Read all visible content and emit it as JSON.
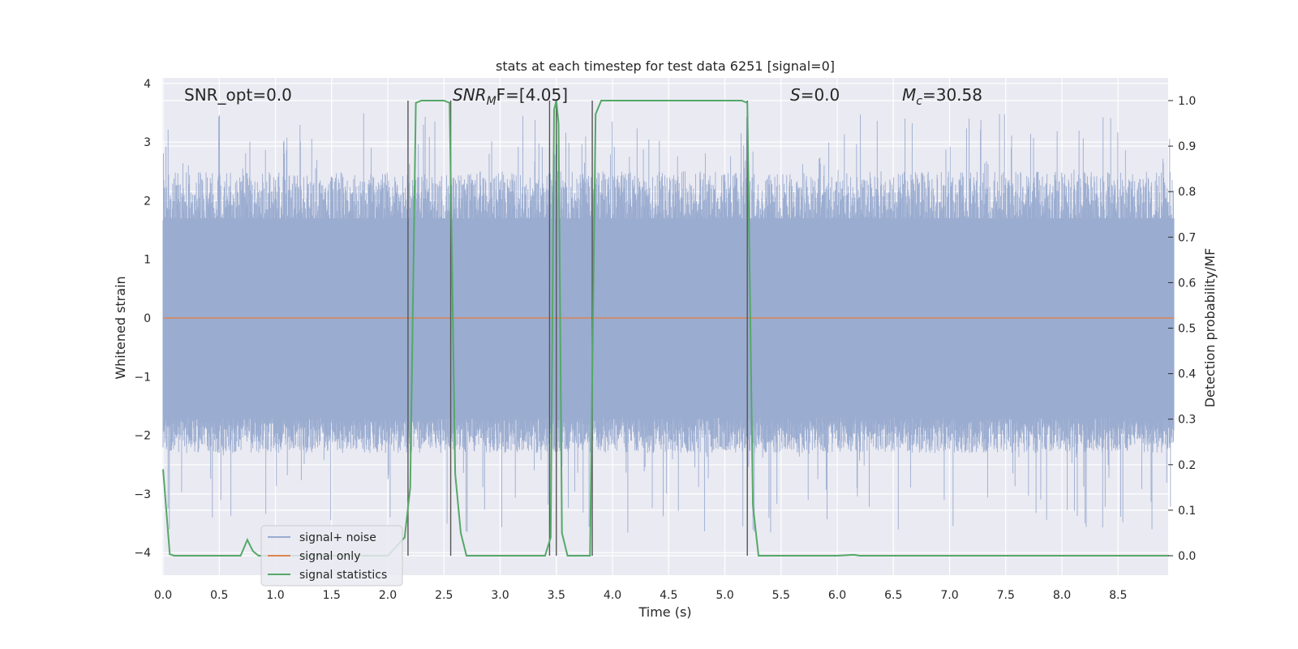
{
  "chart_data": {
    "type": "line",
    "title": "stats at each timestep for test data 6251 [signal=0]",
    "xlabel": "Time (s)",
    "ylabel": "Whitened strain",
    "y2label": "Detection probability/MF",
    "xlim": [
      0.0,
      9.0
    ],
    "ylim": [
      -4.4,
      4.1
    ],
    "y2lim": [
      -0.048,
      1.035
    ],
    "xticks": [
      "0.0",
      "0.5",
      "1.0",
      "1.5",
      "2.0",
      "2.5",
      "3.0",
      "3.5",
      "4.0",
      "4.5",
      "5.0",
      "5.5",
      "6.0",
      "6.5",
      "7.0",
      "7.5",
      "8.0",
      "8.5"
    ],
    "yticks": [
      "4",
      "3",
      "2",
      "1",
      "0",
      "−1",
      "−2",
      "−3",
      "−4"
    ],
    "y2ticks": [
      "1.0",
      "0.9",
      "0.8",
      "0.7",
      "0.6",
      "0.5",
      "0.4",
      "0.3",
      "0.2",
      "0.1",
      "0.0"
    ],
    "grid": true,
    "legend_position": "lower-left",
    "colors": {
      "plot_bg": "#eaeaf2",
      "noise": "#9aacd0",
      "signal_only": "#dd8452",
      "statistics": "#55a868",
      "vlines": "#555555"
    },
    "annotations": {
      "snr_opt": "SNR_opt=0.0",
      "snr_mf_sym": "SNR",
      "snr_mf_sub": "M",
      "snr_mf_rest": "F=[4.05]",
      "s_sym": "S",
      "s_rest": "=0.0",
      "mc_sym": "M",
      "mc_sub": "c",
      "mc_rest": "=30.58"
    },
    "series": [
      {
        "name": "signal+ noise",
        "kind": "noise",
        "envelope_upper": 2.5,
        "envelope_lower": -2.2,
        "spike_max": 3.5,
        "spike_min": -3.7
      },
      {
        "name": "signal only",
        "kind": "constant",
        "value": 0.0
      },
      {
        "name": "signal statistics",
        "kind": "statistic",
        "x": [
          0.0,
          0.06,
          0.1,
          0.15,
          0.25,
          0.35,
          0.45,
          0.55,
          0.65,
          0.69,
          0.75,
          0.8,
          0.85,
          0.9,
          1.0,
          1.5,
          2.0,
          2.15,
          2.2,
          2.25,
          2.3,
          2.4,
          2.5,
          2.55,
          2.6,
          2.65,
          2.7,
          3.0,
          3.4,
          3.45,
          3.48,
          3.5,
          3.52,
          3.55,
          3.6,
          3.65,
          3.7,
          3.8,
          3.82,
          3.85,
          3.9,
          4.0,
          4.5,
          5.0,
          5.15,
          5.2,
          5.25,
          5.3,
          5.35,
          5.5,
          6.0,
          6.15,
          6.2,
          6.3,
          7.0,
          8.0,
          8.95
        ],
        "y": [
          0.19,
          0.003,
          0.0,
          0.0,
          0.0,
          0.0,
          0.0,
          0.0,
          0.0,
          0.0,
          0.035,
          0.01,
          0.0,
          0.0,
          0.0,
          0.0,
          0.0,
          0.04,
          0.15,
          0.995,
          1.0,
          1.0,
          1.0,
          0.995,
          0.18,
          0.05,
          0.0,
          0.0,
          0.0,
          0.04,
          0.98,
          1.0,
          0.95,
          0.05,
          0.0,
          0.0,
          0.0,
          0.0,
          0.4,
          0.97,
          1.0,
          1.0,
          1.0,
          1.0,
          1.0,
          0.995,
          0.11,
          0.0,
          0.0,
          0.0,
          0.0,
          0.002,
          0.0,
          0.0,
          0.0,
          0.0,
          0.0
        ]
      }
    ],
    "vlines_x": [
      2.18,
      2.56,
      3.44,
      3.5,
      3.82,
      5.2
    ],
    "legend": [
      "signal+ noise",
      "signal only",
      "signal statistics"
    ]
  }
}
